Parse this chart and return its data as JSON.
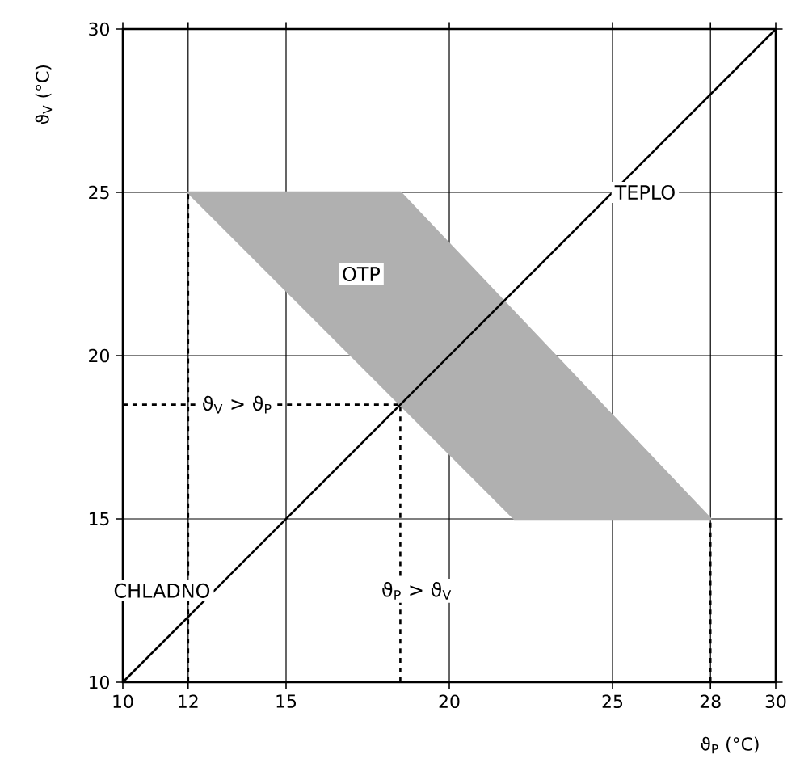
{
  "chart_data": {
    "type": "line",
    "xlabel": "ϑ$_{P}$ (°C)",
    "ylabel": "ϑ$_{V}$ (°C)",
    "xlim": [
      10,
      30
    ],
    "ylim": [
      10,
      30
    ],
    "xticks": [
      10,
      12,
      15,
      20,
      25,
      28,
      30
    ],
    "yticks": [
      10,
      15,
      20,
      25,
      30
    ],
    "grid": true,
    "marker": "none",
    "series": [
      {
        "type": "area",
        "color": "#b0b0b0",
        "line_style": "solid",
        "x": [
          12,
          18.5,
          28,
          22,
          12
        ],
        "values": [
          25,
          25,
          15,
          15,
          25
        ]
      },
      {
        "color": "#000000",
        "line_style": "solid",
        "x": [
          10,
          30
        ],
        "values": [
          10,
          30
        ]
      },
      {
        "color": "#000000",
        "line_style": "dashed",
        "x": [
          12,
          12
        ],
        "values": [
          10,
          25
        ]
      },
      {
        "color": "#000000",
        "line_style": "dashed",
        "x": [
          28,
          28
        ],
        "values": [
          10,
          15
        ]
      },
      {
        "color": "#000000",
        "line_style": "dashed",
        "x": [
          18.5,
          18.5
        ],
        "values": [
          10,
          18.5
        ]
      },
      {
        "color": "#000000",
        "line_style": "dashed",
        "x": [
          10,
          18.5
        ],
        "values": [
          18.5,
          18.5
        ]
      }
    ],
    "annotations": [
      "TEPLO",
      {
        "text": "OTP",
        "x": 17.3,
        "y": 22.5
      },
      "CHLADNO",
      {
        "text": "ϑ$_{V}$ > ϑ$_{P}$",
        "x": 13.5,
        "y": 18.5
      },
      "ϑ$_{P}$ > ϑ$_{V}$"
    ]
  }
}
